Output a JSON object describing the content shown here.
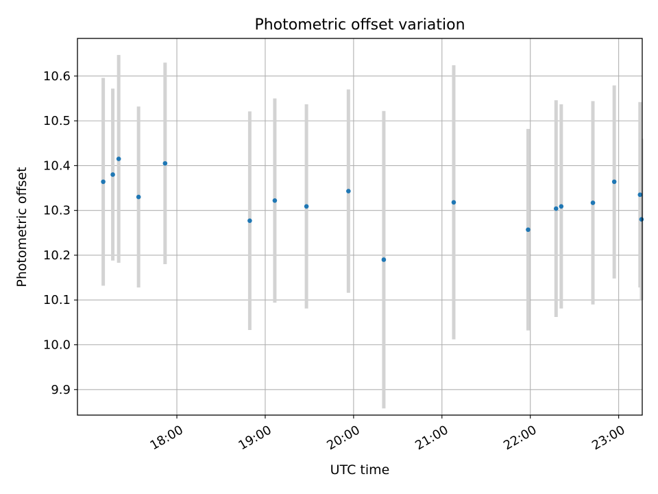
{
  "chart_data": {
    "type": "scatter",
    "title": "Photometric offset variation",
    "xlabel": "UTC time",
    "ylabel": "Photometric offset",
    "x_unit": "minutes after 00:00 UTC",
    "xlim": [
      1012.5,
      1396.0
    ],
    "ylim": [
      9.843,
      10.684
    ],
    "x_ticks": [
      {
        "value": 1080,
        "label": "18:00"
      },
      {
        "value": 1140,
        "label": "19:00"
      },
      {
        "value": 1200,
        "label": "20:00"
      },
      {
        "value": 1260,
        "label": "21:00"
      },
      {
        "value": 1320,
        "label": "22:00"
      },
      {
        "value": 1380,
        "label": "23:00"
      }
    ],
    "y_ticks": [
      {
        "value": 9.9,
        "label": "9.9"
      },
      {
        "value": 10.0,
        "label": "10.0"
      },
      {
        "value": 10.1,
        "label": "10.1"
      },
      {
        "value": 10.2,
        "label": "10.2"
      },
      {
        "value": 10.3,
        "label": "10.3"
      },
      {
        "value": 10.4,
        "label": "10.4"
      },
      {
        "value": 10.5,
        "label": "10.5"
      },
      {
        "value": 10.6,
        "label": "10.6"
      }
    ],
    "grid": true,
    "point_color": "#1f77b4",
    "errorbar_color": "#d3d3d3",
    "points": [
      {
        "x": 1030.0,
        "y": 10.364,
        "ylow": 10.132,
        "yhigh": 10.596
      },
      {
        "x": 1036.5,
        "y": 10.38,
        "ylow": 10.188,
        "yhigh": 10.572
      },
      {
        "x": 1040.5,
        "y": 10.415,
        "ylow": 10.183,
        "yhigh": 10.647
      },
      {
        "x": 1054.0,
        "y": 10.33,
        "ylow": 10.128,
        "yhigh": 10.532
      },
      {
        "x": 1072.0,
        "y": 10.405,
        "ylow": 10.18,
        "yhigh": 10.63
      },
      {
        "x": 1129.5,
        "y": 10.277,
        "ylow": 10.033,
        "yhigh": 10.521
      },
      {
        "x": 1146.5,
        "y": 10.322,
        "ylow": 10.094,
        "yhigh": 10.55
      },
      {
        "x": 1168.0,
        "y": 10.309,
        "ylow": 10.081,
        "yhigh": 10.537
      },
      {
        "x": 1196.5,
        "y": 10.343,
        "ylow": 10.116,
        "yhigh": 10.57
      },
      {
        "x": 1220.5,
        "y": 10.19,
        "ylow": 9.858,
        "yhigh": 10.522
      },
      {
        "x": 1268.0,
        "y": 10.318,
        "ylow": 10.012,
        "yhigh": 10.624
      },
      {
        "x": 1318.5,
        "y": 10.257,
        "ylow": 10.032,
        "yhigh": 10.482
      },
      {
        "x": 1337.5,
        "y": 10.304,
        "ylow": 10.062,
        "yhigh": 10.546
      },
      {
        "x": 1341.0,
        "y": 10.309,
        "ylow": 10.081,
        "yhigh": 10.537
      },
      {
        "x": 1362.5,
        "y": 10.317,
        "ylow": 10.09,
        "yhigh": 10.544
      },
      {
        "x": 1377.0,
        "y": 10.364,
        "ylow": 10.148,
        "yhigh": 10.579
      },
      {
        "x": 1394.5,
        "y": 10.335,
        "ylow": 10.128,
        "yhigh": 10.542
      },
      {
        "x": 1395.5,
        "y": 10.28,
        "ylow": 10.1,
        "yhigh": 10.46
      }
    ]
  }
}
